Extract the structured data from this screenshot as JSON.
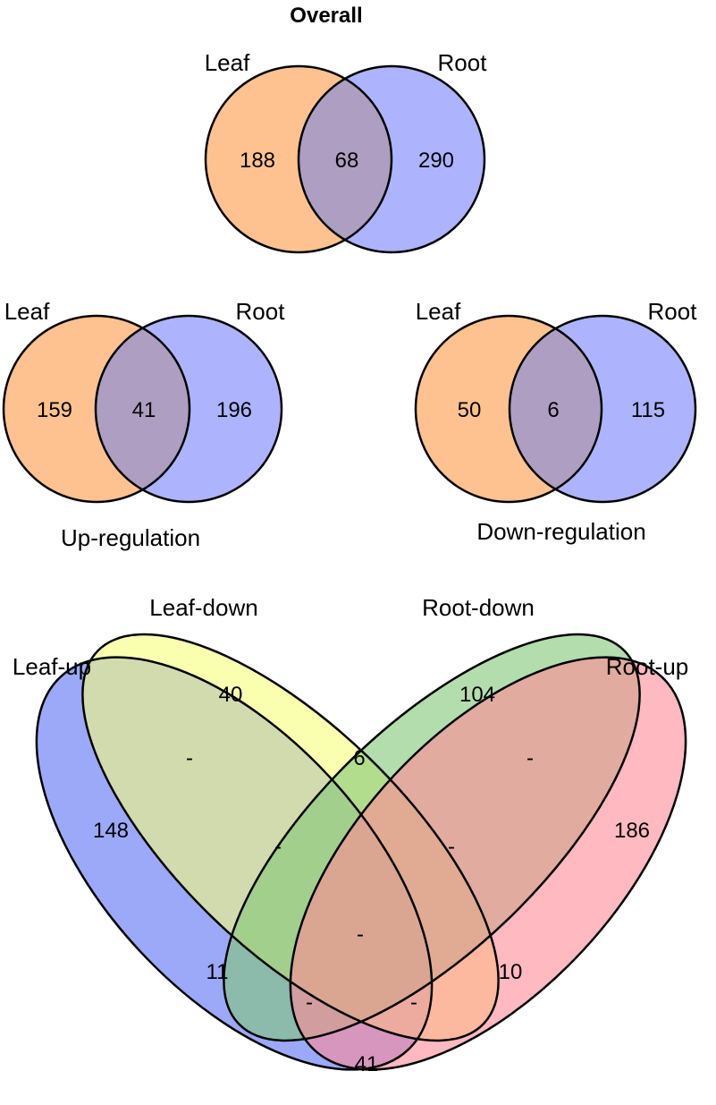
{
  "colors": {
    "leaf": "#FDC28F",
    "root": "#ADB4FD",
    "leaf_root_overlap": "#AE9EC1",
    "leaf_up": "#8E9DF8",
    "leaf_down": "#F6FD7A",
    "root_down": "#82C676",
    "root_up": "#FF8A96"
  },
  "overall": {
    "title": "Overall",
    "set_a": "Leaf",
    "set_b": "Root",
    "only_a": "188",
    "both": "68",
    "only_b": "290"
  },
  "up_regulation": {
    "caption": "Up-regulation",
    "set_a": "Leaf",
    "set_b": "Root",
    "only_a": "159",
    "both": "41",
    "only_b": "196"
  },
  "down_regulation": {
    "caption": "Down-regulation",
    "set_a": "Leaf",
    "set_b": "Root",
    "only_a": "50",
    "both": "6",
    "only_b": "115"
  },
  "four_way": {
    "set_labels": {
      "leaf_up": "Leaf-up",
      "leaf_down": "Leaf-down",
      "root_down": "Root-down",
      "root_up": "Root-up"
    },
    "regions": {
      "leaf_down_only": "40",
      "root_down_only": "104",
      "leaf_up_only": "148",
      "root_up_only": "186",
      "leaf_up_leaf_down": "-",
      "leaf_down_root_down": "6",
      "root_down_root_up": "-",
      "leaf_up_leaf_down_root_down": "-",
      "leaf_down_root_down_root_up": "-",
      "all_four": "-",
      "leaf_up_root_down": "11",
      "leaf_down_root_up": "10",
      "leaf_up_root_down_root_up": "-",
      "leaf_up_leaf_down_root_up": "-",
      "leaf_up_root_up": "41"
    }
  }
}
